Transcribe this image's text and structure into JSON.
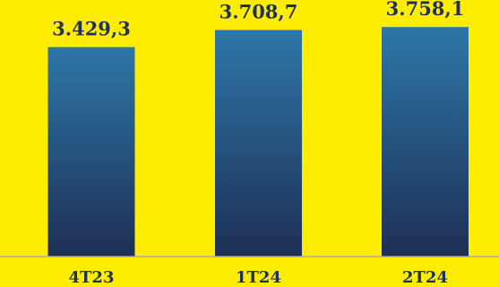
{
  "chart_data": {
    "type": "bar",
    "title": "",
    "xlabel": "",
    "ylabel": "",
    "categories": [
      "4T23",
      "1T24",
      "2T24"
    ],
    "values": [
      3429.3,
      3708.7,
      3758.1
    ],
    "value_labels": [
      "3.429,3",
      "3.708,7",
      "3.758,1"
    ],
    "ylim": [
      0,
      4200
    ],
    "grid": false,
    "legend": "none",
    "colors": {
      "background": "#FFED00",
      "bar_top": "#2D77A8",
      "bar_bottom": "#1E2F55",
      "text": "#1F3156",
      "axis": "#A9A9A9"
    }
  }
}
